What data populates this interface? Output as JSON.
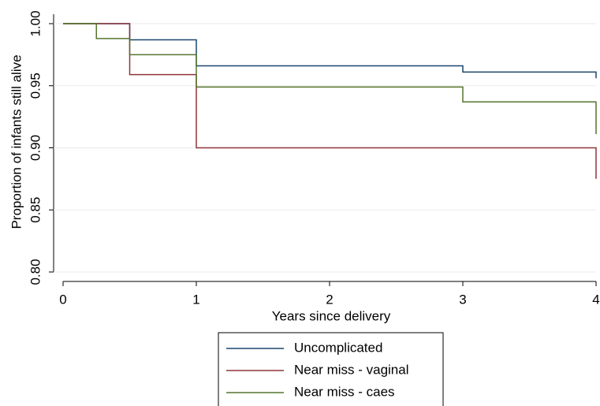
{
  "chart_data": {
    "type": "step",
    "xlabel": "Years since delivery",
    "ylabel": "Proportion of infants still alive",
    "xlim": [
      0,
      4
    ],
    "xticks": [
      0,
      1,
      2,
      3,
      4
    ],
    "ylim": [
      0.8,
      1.0
    ],
    "yticks": [
      {
        "value": 0.8,
        "label": "0.80"
      },
      {
        "value": 0.85,
        "label": "0.85"
      },
      {
        "value": 0.9,
        "label": "0.90"
      },
      {
        "value": 0.95,
        "label": "0.95"
      },
      {
        "value": 1.0,
        "label": "1.00"
      }
    ],
    "grid": true,
    "series": [
      {
        "name": "Uncomplicated",
        "color": "#1a476f",
        "x": [
          0,
          0.5,
          1,
          3,
          4
        ],
        "values": [
          1.0,
          0.987,
          0.966,
          0.961,
          0.956
        ]
      },
      {
        "name": "Near miss - vaginal",
        "color": "#90353b",
        "x": [
          0,
          0.5,
          1,
          4
        ],
        "values": [
          1.0,
          0.959,
          0.9,
          0.875
        ]
      },
      {
        "name": "Near miss - caes",
        "color": "#55752f",
        "x": [
          0,
          0.25,
          0.5,
          1,
          3,
          4
        ],
        "values": [
          1.0,
          0.988,
          0.975,
          0.949,
          0.937,
          0.911
        ]
      }
    ]
  }
}
